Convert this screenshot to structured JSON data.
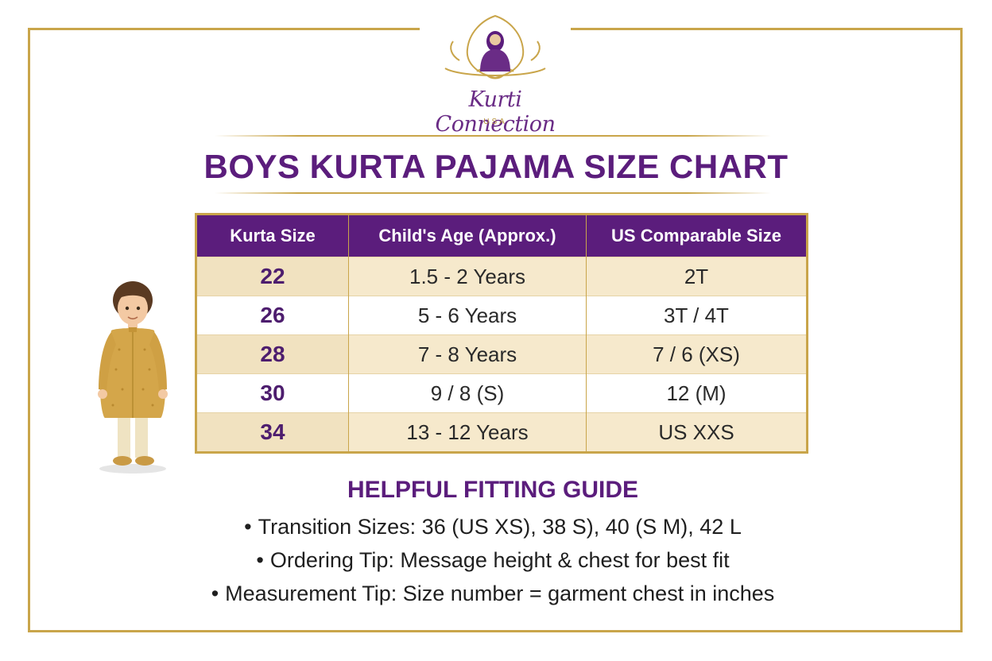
{
  "brand": {
    "name": "Kurti Connection",
    "sub": "USA"
  },
  "title": "BOYS KURTA PAJAMA SIZE CHART",
  "table": {
    "headers": [
      "Kurta Size",
      "Child's Age (Approx.)",
      "US Comparable Size"
    ],
    "rows": [
      [
        "22",
        "1.5 - 2 Years",
        "2T"
      ],
      [
        "26",
        "5 - 6 Years",
        "3T / 4T"
      ],
      [
        "28",
        "7 - 8 Years",
        "7 / 6 (XS)"
      ],
      [
        "30",
        "9 / 8 (S)",
        "12 (M)"
      ],
      [
        "34",
        "13 - 12 Years",
        "US XXS"
      ]
    ]
  },
  "guide": {
    "title": "HELPFUL FITTING GUIDE",
    "tips": [
      "Transition Sizes: 36 (US XS), 38 S), 40 (S M), 42 L",
      "Ordering Tip: Message height & chest for best fit",
      "Measurement Tip: Size number = garment chest in inches"
    ],
    "bullet": "•"
  },
  "colors": {
    "purple": "#5b1d7c",
    "gold": "#c9a54a",
    "cream": "#f6e9cc"
  },
  "icons": [
    "brand-logo-icon",
    "boy-in-kurta-illustration"
  ]
}
